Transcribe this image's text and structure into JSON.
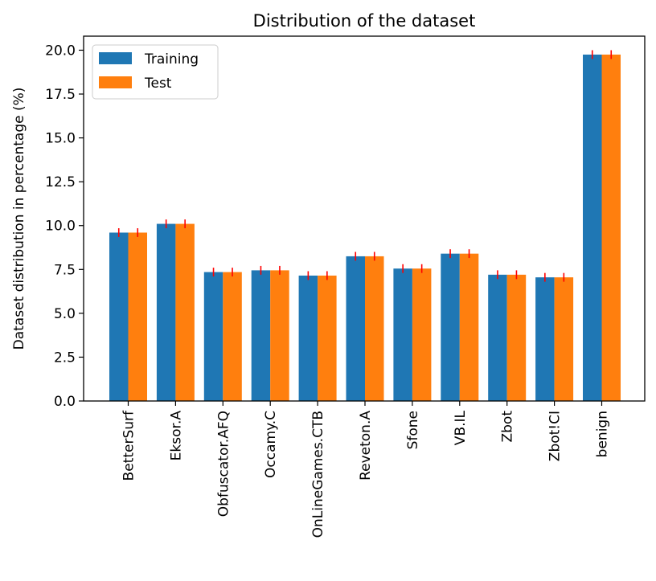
{
  "chart_data": {
    "type": "bar",
    "title": "Distribution of the dataset",
    "xlabel": "",
    "ylabel": "Dataset distribution in percentage (%)",
    "categories": [
      "BetterSurf",
      "Eksor.A",
      "Obfuscator.AFQ",
      "Occamy.C",
      "OnLineGames.CTB",
      "Reveton.A",
      "Sfone",
      "VB.IL",
      "Zbot",
      "Zbot!CI",
      "benign"
    ],
    "series": [
      {
        "name": "Training",
        "color": "#1f77b4",
        "values": [
          9.6,
          10.1,
          7.35,
          7.45,
          7.15,
          8.25,
          7.55,
          8.4,
          7.2,
          7.05,
          19.75
        ]
      },
      {
        "name": "Test",
        "color": "#ff7f0e",
        "values": [
          9.6,
          10.1,
          7.35,
          7.45,
          7.15,
          8.25,
          7.55,
          8.4,
          7.2,
          7.05,
          19.75
        ]
      }
    ],
    "error_bar_color": "#ff0000",
    "error_bar_halfwidth": 0.25,
    "ylim": [
      0,
      20.8
    ],
    "yticks": [
      "0.0",
      "2.5",
      "5.0",
      "7.5",
      "10.0",
      "12.5",
      "15.0",
      "17.5",
      "20.0"
    ],
    "legend_position": "top-left",
    "grid": false
  }
}
